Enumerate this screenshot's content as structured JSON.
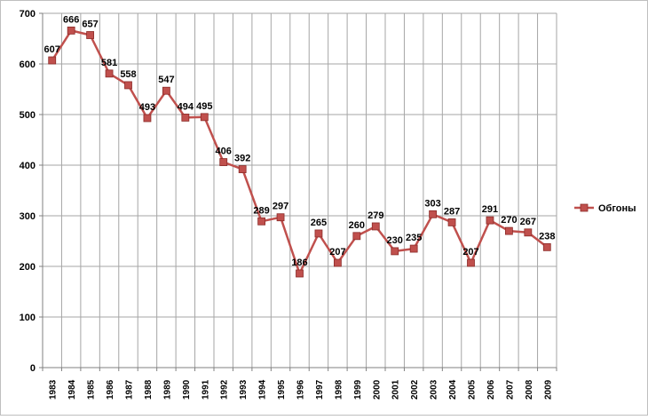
{
  "chart_data": {
    "type": "line",
    "title": "",
    "xlabel": "",
    "ylabel": "",
    "ylim": [
      0,
      700
    ],
    "yticks": [
      0,
      100,
      200,
      300,
      400,
      500,
      600,
      700
    ],
    "grid": true,
    "legend_position": "right",
    "categories": [
      "1983",
      "1984",
      "1985",
      "1986",
      "1987",
      "1988",
      "1989",
      "1990",
      "1991",
      "1992",
      "1993",
      "1994",
      "1995",
      "1996",
      "1997",
      "1998",
      "1999",
      "2000",
      "2001",
      "2002",
      "2003",
      "2004",
      "2005",
      "2006",
      "2007",
      "2008",
      "2009"
    ],
    "series": [
      {
        "name": "Обгоны",
        "color": "#c0504d",
        "values": [
          607,
          666,
          657,
          581,
          558,
          493,
          547,
          494,
          495,
          406,
          392,
          289,
          297,
          186,
          265,
          207,
          260,
          279,
          230,
          235,
          303,
          287,
          207,
          291,
          270,
          267,
          238
        ]
      }
    ]
  }
}
